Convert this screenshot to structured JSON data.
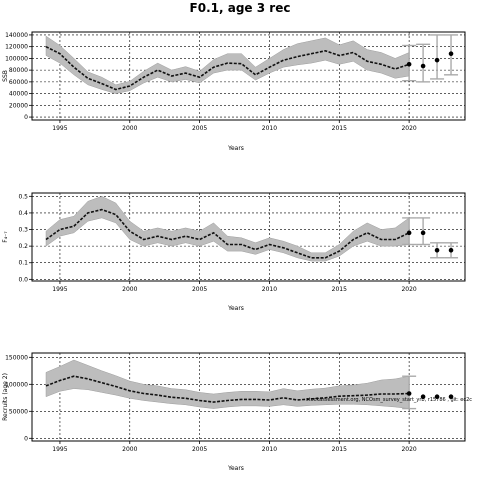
{
  "page": {
    "title": "F0.1, age 3 rec"
  },
  "chart_data": [
    {
      "type": "line",
      "xlabel": "Years",
      "ylabel": "SSB",
      "xlim": [
        1993,
        2024
      ],
      "ylim": [
        -5000,
        145000
      ],
      "yticks": [
        0,
        20000,
        40000,
        60000,
        80000,
        100000,
        120000,
        140000
      ],
      "xticks": [
        1995,
        2000,
        2005,
        2010,
        2015,
        2020
      ],
      "grid": true,
      "series": [
        {
          "role": "estimate",
          "x": [
            1994,
            1995,
            1996,
            1997,
            1998,
            1999,
            2000,
            2001,
            2002,
            2003,
            2004,
            2005,
            2006,
            2007,
            2008,
            2009,
            2010,
            2011,
            2012,
            2013,
            2014,
            2015,
            2016,
            2017,
            2018,
            2019,
            2020
          ],
          "y": [
            120000,
            108000,
            85000,
            66000,
            57000,
            47000,
            53000,
            68000,
            80000,
            70000,
            75000,
            68000,
            85000,
            92000,
            91000,
            72000,
            85000,
            97000,
            103000,
            108000,
            113000,
            105000,
            110000,
            95000,
            90000,
            82000,
            90000
          ],
          "lower": [
            105000,
            92000,
            72000,
            55000,
            47000,
            40000,
            45000,
            58000,
            68000,
            60000,
            64000,
            58000,
            75000,
            80000,
            80000,
            63000,
            75000,
            85000,
            89000,
            92000,
            97000,
            90000,
            95000,
            80000,
            75000,
            66000,
            70000
          ],
          "upper": [
            138000,
            122000,
            100000,
            77000,
            68000,
            55000,
            61000,
            78000,
            92000,
            80000,
            86000,
            78000,
            98000,
            108000,
            108000,
            85000,
            100000,
            115000,
            125000,
            130000,
            135000,
            123000,
            130000,
            115000,
            110000,
            100000,
            110000
          ]
        },
        {
          "role": "forecast",
          "x": [
            2020,
            2021,
            2022,
            2023
          ],
          "y": [
            90000,
            87000,
            97000,
            108000
          ],
          "lower": [
            62000,
            60000,
            65000,
            72000
          ],
          "upper": [
            122000,
            124000,
            140000,
            140000
          ]
        }
      ]
    },
    {
      "type": "line",
      "xlabel": "Years",
      "ylabel": "F₄₋₇",
      "xlim": [
        1993,
        2024
      ],
      "ylim": [
        -0.01,
        0.52
      ],
      "yticks": [
        0.0,
        0.1,
        0.2,
        0.3,
        0.4,
        0.5
      ],
      "xticks": [
        1995,
        2000,
        2005,
        2010,
        2015,
        2020
      ],
      "grid": true,
      "series": [
        {
          "role": "estimate",
          "x": [
            1994,
            1995,
            1996,
            1997,
            1998,
            1999,
            2000,
            2001,
            2002,
            2003,
            2004,
            2005,
            2006,
            2007,
            2008,
            2009,
            2010,
            2011,
            2012,
            2013,
            2014,
            2015,
            2016,
            2017,
            2018,
            2019,
            2020
          ],
          "y": [
            0.24,
            0.3,
            0.32,
            0.4,
            0.42,
            0.39,
            0.29,
            0.24,
            0.26,
            0.24,
            0.26,
            0.24,
            0.28,
            0.21,
            0.21,
            0.18,
            0.21,
            0.19,
            0.16,
            0.13,
            0.13,
            0.17,
            0.24,
            0.28,
            0.24,
            0.24,
            0.28
          ],
          "lower": [
            0.2,
            0.26,
            0.28,
            0.35,
            0.37,
            0.34,
            0.24,
            0.2,
            0.22,
            0.2,
            0.22,
            0.2,
            0.23,
            0.17,
            0.17,
            0.15,
            0.18,
            0.16,
            0.13,
            0.11,
            0.11,
            0.14,
            0.2,
            0.23,
            0.2,
            0.2,
            0.21
          ],
          "upper": [
            0.29,
            0.36,
            0.38,
            0.47,
            0.5,
            0.46,
            0.35,
            0.29,
            0.31,
            0.29,
            0.31,
            0.29,
            0.34,
            0.26,
            0.25,
            0.22,
            0.25,
            0.23,
            0.2,
            0.16,
            0.16,
            0.21,
            0.29,
            0.34,
            0.3,
            0.31,
            0.37
          ]
        },
        {
          "role": "forecast",
          "x": [
            2020,
            2021,
            2022,
            2023
          ],
          "y": [
            0.28,
            0.28,
            0.175,
            0.175
          ],
          "lower": [
            0.21,
            0.21,
            0.13,
            0.13
          ],
          "upper": [
            0.37,
            0.37,
            0.22,
            0.22
          ]
        }
      ]
    },
    {
      "type": "line",
      "xlabel": "Years",
      "ylabel": "Recruits (age 2)",
      "xlim": [
        1993,
        2024
      ],
      "ylim": [
        -5000,
        158000
      ],
      "yticks": [
        0,
        50000,
        100000,
        150000
      ],
      "xticks": [
        1995,
        2000,
        2005,
        2010,
        2015,
        2020
      ],
      "grid": true,
      "annotation": "stockassessment.org, NCOsm_survey_start_yrb, r15786 , git: ec2c",
      "series": [
        {
          "role": "estimate",
          "x": [
            1994,
            1995,
            1996,
            1997,
            1998,
            1999,
            2000,
            2001,
            2002,
            2003,
            2004,
            2005,
            2006,
            2007,
            2008,
            2009,
            2010,
            2011,
            2012,
            2013,
            2014,
            2015,
            2016,
            2017,
            2018,
            2019,
            2020
          ],
          "y": [
            97000,
            107000,
            115000,
            110000,
            103000,
            96000,
            88000,
            83000,
            80000,
            76000,
            74000,
            70000,
            67000,
            70000,
            72000,
            72000,
            71000,
            75000,
            71000,
            73000,
            75000,
            78000,
            79000,
            80000,
            82000,
            82000,
            83000
          ],
          "lower": [
            77000,
            87000,
            92000,
            90000,
            85000,
            80000,
            74000,
            70000,
            67000,
            64000,
            62000,
            58000,
            55000,
            58000,
            60000,
            60000,
            59000,
            62000,
            59000,
            61000,
            62000,
            63000,
            63000,
            62000,
            60000,
            58000,
            55000
          ],
          "upper": [
            122000,
            133000,
            145000,
            135000,
            125000,
            116000,
            106000,
            100000,
            97000,
            92000,
            90000,
            85000,
            82000,
            85000,
            87000,
            87000,
            86000,
            92000,
            88000,
            91000,
            93000,
            97000,
            99000,
            102000,
            108000,
            110000,
            115000
          ]
        },
        {
          "role": "forecast",
          "x": [
            2020,
            2021,
            2022,
            2023
          ],
          "y": [
            83000,
            77000,
            77000,
            77000
          ],
          "lower": [
            55000,
            77000,
            77000,
            77000
          ],
          "upper": [
            115000,
            77000,
            77000,
            77000
          ]
        }
      ]
    }
  ]
}
